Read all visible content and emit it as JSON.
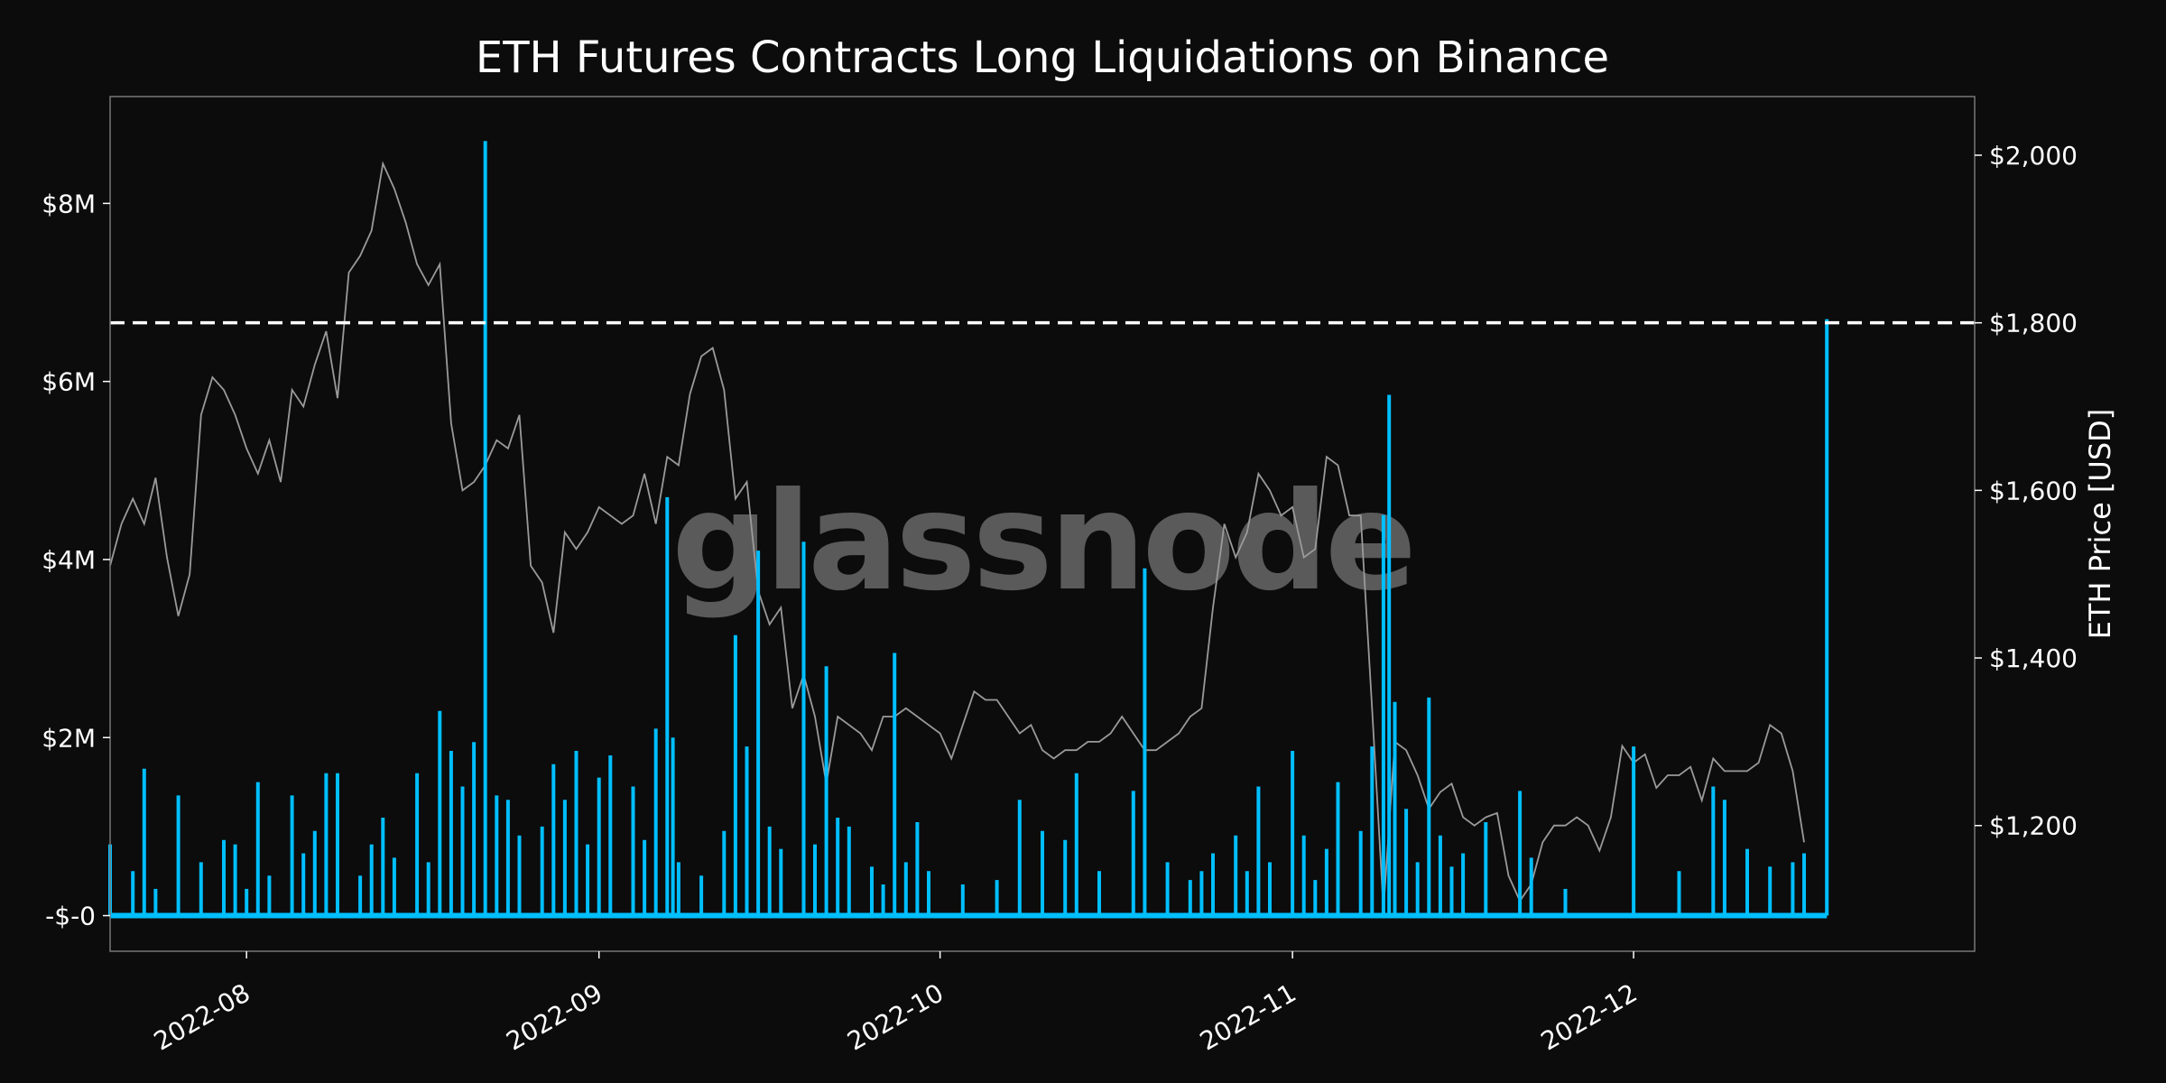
{
  "chart_data": {
    "type": "line",
    "title": "ETH Futures Contracts Long Liquidations on Binance",
    "watermark": "glassnode",
    "x_ticks": [
      "2022-08",
      "2022-09",
      "2022-10",
      "2022-11",
      "2022-12"
    ],
    "xlim": [
      "2022-07-20",
      "2022-12-31"
    ],
    "y_left": {
      "ylabel": "",
      "ylim": [
        -400000,
        9200000
      ],
      "ticks": [
        0,
        2000000,
        4000000,
        6000000,
        8000000
      ],
      "tick_labels": [
        "-$-0",
        "$2M",
        "$4M",
        "$6M",
        "$8M"
      ]
    },
    "y_right": {
      "ylabel": "ETH Price [USD]",
      "ylim": [
        1050,
        2070
      ],
      "ticks": [
        1200,
        1400,
        1600,
        1800,
        2000
      ],
      "tick_labels": [
        "$1,200",
        "$1,400",
        "$1,600",
        "$1,800",
        "$2,000"
      ]
    },
    "hline": {
      "axis": "right",
      "value": 1800,
      "style": "dashed",
      "color": "#ffffff"
    },
    "colors": {
      "liquidations": "#00bfff",
      "price": "#9a9a9a",
      "background": "#0c0c0c",
      "frame": "#777777"
    },
    "series": [
      {
        "name": "Long Liquidations",
        "axis": "left",
        "points": [
          [
            "2022-07-20",
            800000.0
          ],
          [
            "2022-07-22",
            500000.0
          ],
          [
            "2022-07-23",
            1650000.0
          ],
          [
            "2022-07-24",
            300000.0
          ],
          [
            "2022-07-26",
            1350000.0
          ],
          [
            "2022-07-28",
            600000.0
          ],
          [
            "2022-07-30",
            850000.0
          ],
          [
            "2022-07-31",
            800000.0
          ],
          [
            "2022-08-01",
            300000.0
          ],
          [
            "2022-08-02",
            1500000.0
          ],
          [
            "2022-08-03",
            450000.0
          ],
          [
            "2022-08-05",
            1350000.0
          ],
          [
            "2022-08-06",
            700000.0
          ],
          [
            "2022-08-07",
            950000.0
          ],
          [
            "2022-08-08",
            1600000.0
          ],
          [
            "2022-08-09",
            1600000.0
          ],
          [
            "2022-08-11",
            450000.0
          ],
          [
            "2022-08-12",
            800000.0
          ],
          [
            "2022-08-13",
            1100000.0
          ],
          [
            "2022-08-14",
            650000.0
          ],
          [
            "2022-08-16",
            1600000.0
          ],
          [
            "2022-08-17",
            600000.0
          ],
          [
            "2022-08-18",
            2300000.0
          ],
          [
            "2022-08-19",
            1850000.0
          ],
          [
            "2022-08-20",
            1450000.0
          ],
          [
            "2022-08-21",
            1950000.0
          ],
          [
            "2022-08-22",
            8700000.0
          ],
          [
            "2022-08-23",
            1350000.0
          ],
          [
            "2022-08-24",
            1300000.0
          ],
          [
            "2022-08-25",
            900000.0
          ],
          [
            "2022-08-27",
            1000000.0
          ],
          [
            "2022-08-28",
            1700000.0
          ],
          [
            "2022-08-29",
            1300000.0
          ],
          [
            "2022-08-30",
            1850000.0
          ],
          [
            "2022-08-31",
            800000.0
          ],
          [
            "2022-09-01",
            1550000.0
          ],
          [
            "2022-09-02",
            1800000.0
          ],
          [
            "2022-09-04",
            1450000.0
          ],
          [
            "2022-09-05",
            850000.0
          ],
          [
            "2022-09-06",
            2100000.0
          ],
          [
            "2022-09-07",
            4700000.0
          ],
          [
            "2022-09-07T12:00",
            2000000.0
          ],
          [
            "2022-09-08",
            600000.0
          ],
          [
            "2022-09-10",
            450000.0
          ],
          [
            "2022-09-12",
            950000.0
          ],
          [
            "2022-09-13",
            3150000.0
          ],
          [
            "2022-09-14",
            1900000.0
          ],
          [
            "2022-09-15",
            4100000.0
          ],
          [
            "2022-09-16",
            1000000.0
          ],
          [
            "2022-09-17",
            750000.0
          ],
          [
            "2022-09-19",
            4200000.0
          ],
          [
            "2022-09-20",
            800000.0
          ],
          [
            "2022-09-21",
            2800000.0
          ],
          [
            "2022-09-22",
            1100000.0
          ],
          [
            "2022-09-23",
            1000000.0
          ],
          [
            "2022-09-25",
            550000.0
          ],
          [
            "2022-09-26",
            350000.0
          ],
          [
            "2022-09-27",
            2950000.0
          ],
          [
            "2022-09-28",
            600000.0
          ],
          [
            "2022-09-29",
            1050000.0
          ],
          [
            "2022-09-30",
            500000.0
          ],
          [
            "2022-10-03",
            350000.0
          ],
          [
            "2022-10-06",
            400000.0
          ],
          [
            "2022-10-08",
            1300000.0
          ],
          [
            "2022-10-10",
            950000.0
          ],
          [
            "2022-10-12",
            850000.0
          ],
          [
            "2022-10-13",
            1600000.0
          ],
          [
            "2022-10-15",
            500000.0
          ],
          [
            "2022-10-18",
            1400000.0
          ],
          [
            "2022-10-19",
            3900000.0
          ],
          [
            "2022-10-21",
            600000.0
          ],
          [
            "2022-10-23",
            400000.0
          ],
          [
            "2022-10-24",
            500000.0
          ],
          [
            "2022-10-25",
            700000.0
          ],
          [
            "2022-10-27",
            900000.0
          ],
          [
            "2022-10-28",
            500000.0
          ],
          [
            "2022-10-29",
            1450000.0
          ],
          [
            "2022-10-30",
            600000.0
          ],
          [
            "2022-11-01",
            1850000.0
          ],
          [
            "2022-11-02",
            900000.0
          ],
          [
            "2022-11-03",
            400000.0
          ],
          [
            "2022-11-04",
            750000.0
          ],
          [
            "2022-11-05",
            1500000.0
          ],
          [
            "2022-11-07",
            950000.0
          ],
          [
            "2022-11-08",
            1900000.0
          ],
          [
            "2022-11-09",
            4500000.0
          ],
          [
            "2022-11-09T12:00",
            5850000.0
          ],
          [
            "2022-11-10",
            2400000.0
          ],
          [
            "2022-11-11",
            1200000.0
          ],
          [
            "2022-11-12",
            600000.0
          ],
          [
            "2022-11-13",
            2450000.0
          ],
          [
            "2022-11-14",
            900000.0
          ],
          [
            "2022-11-15",
            550000.0
          ],
          [
            "2022-11-16",
            700000.0
          ],
          [
            "2022-11-18",
            1050000.0
          ],
          [
            "2022-11-21",
            1400000.0
          ],
          [
            "2022-11-22",
            650000.0
          ],
          [
            "2022-11-25",
            300000.0
          ],
          [
            "2022-12-01",
            1900000.0
          ],
          [
            "2022-12-05",
            500000.0
          ],
          [
            "2022-12-08",
            1450000.0
          ],
          [
            "2022-12-09",
            1300000.0
          ],
          [
            "2022-12-11",
            750000.0
          ],
          [
            "2022-12-13",
            550000.0
          ],
          [
            "2022-12-15",
            600000.0
          ],
          [
            "2022-12-16",
            700000.0
          ],
          [
            "2022-12-18",
            6700000.0
          ]
        ]
      },
      {
        "name": "ETH Price",
        "axis": "right",
        "points": [
          [
            "2022-07-20",
            1510
          ],
          [
            "2022-07-21",
            1560
          ],
          [
            "2022-07-22",
            1590
          ],
          [
            "2022-07-23",
            1560
          ],
          [
            "2022-07-24",
            1615
          ],
          [
            "2022-07-25",
            1520
          ],
          [
            "2022-07-26",
            1450
          ],
          [
            "2022-07-27",
            1500
          ],
          [
            "2022-07-28",
            1690
          ],
          [
            "2022-07-29",
            1735
          ],
          [
            "2022-07-30",
            1720
          ],
          [
            "2022-07-31",
            1690
          ],
          [
            "2022-08-01",
            1650
          ],
          [
            "2022-08-02",
            1620
          ],
          [
            "2022-08-03",
            1660
          ],
          [
            "2022-08-04",
            1610
          ],
          [
            "2022-08-05",
            1720
          ],
          [
            "2022-08-06",
            1700
          ],
          [
            "2022-08-07",
            1750
          ],
          [
            "2022-08-08",
            1790
          ],
          [
            "2022-08-09",
            1710
          ],
          [
            "2022-08-10",
            1860
          ],
          [
            "2022-08-11",
            1880
          ],
          [
            "2022-08-12",
            1910
          ],
          [
            "2022-08-13",
            1990
          ],
          [
            "2022-08-14",
            1960
          ],
          [
            "2022-08-15",
            1920
          ],
          [
            "2022-08-16",
            1870
          ],
          [
            "2022-08-17",
            1845
          ],
          [
            "2022-08-18",
            1870
          ],
          [
            "2022-08-19",
            1680
          ],
          [
            "2022-08-20",
            1600
          ],
          [
            "2022-08-21",
            1610
          ],
          [
            "2022-08-22",
            1630
          ],
          [
            "2022-08-23",
            1660
          ],
          [
            "2022-08-24",
            1650
          ],
          [
            "2022-08-25",
            1690
          ],
          [
            "2022-08-26",
            1510
          ],
          [
            "2022-08-27",
            1490
          ],
          [
            "2022-08-28",
            1430
          ],
          [
            "2022-08-29",
            1550
          ],
          [
            "2022-08-30",
            1530
          ],
          [
            "2022-08-31",
            1550
          ],
          [
            "2022-09-01",
            1580
          ],
          [
            "2022-09-02",
            1570
          ],
          [
            "2022-09-03",
            1560
          ],
          [
            "2022-09-04",
            1570
          ],
          [
            "2022-09-05",
            1620
          ],
          [
            "2022-09-06",
            1560
          ],
          [
            "2022-09-07",
            1640
          ],
          [
            "2022-09-08",
            1630
          ],
          [
            "2022-09-09",
            1715
          ],
          [
            "2022-09-10",
            1760
          ],
          [
            "2022-09-11",
            1770
          ],
          [
            "2022-09-12",
            1720
          ],
          [
            "2022-09-13",
            1590
          ],
          [
            "2022-09-14",
            1610
          ],
          [
            "2022-09-15",
            1480
          ],
          [
            "2022-09-16",
            1440
          ],
          [
            "2022-09-17",
            1460
          ],
          [
            "2022-09-18",
            1340
          ],
          [
            "2022-09-19",
            1380
          ],
          [
            "2022-09-20",
            1330
          ],
          [
            "2022-09-21",
            1250
          ],
          [
            "2022-09-22",
            1330
          ],
          [
            "2022-09-23",
            1320
          ],
          [
            "2022-09-24",
            1310
          ],
          [
            "2022-09-25",
            1290
          ],
          [
            "2022-09-26",
            1330
          ],
          [
            "2022-09-27",
            1330
          ],
          [
            "2022-09-28",
            1340
          ],
          [
            "2022-09-29",
            1330
          ],
          [
            "2022-09-30",
            1320
          ],
          [
            "2022-10-01",
            1310
          ],
          [
            "2022-10-02",
            1280
          ],
          [
            "2022-10-03",
            1320
          ],
          [
            "2022-10-04",
            1360
          ],
          [
            "2022-10-05",
            1350
          ],
          [
            "2022-10-06",
            1350
          ],
          [
            "2022-10-07",
            1330
          ],
          [
            "2022-10-08",
            1310
          ],
          [
            "2022-10-09",
            1320
          ],
          [
            "2022-10-10",
            1290
          ],
          [
            "2022-10-11",
            1280
          ],
          [
            "2022-10-12",
            1290
          ],
          [
            "2022-10-13",
            1290
          ],
          [
            "2022-10-14",
            1300
          ],
          [
            "2022-10-15",
            1300
          ],
          [
            "2022-10-16",
            1310
          ],
          [
            "2022-10-17",
            1330
          ],
          [
            "2022-10-18",
            1310
          ],
          [
            "2022-10-19",
            1290
          ],
          [
            "2022-10-20",
            1290
          ],
          [
            "2022-10-21",
            1300
          ],
          [
            "2022-10-22",
            1310
          ],
          [
            "2022-10-23",
            1330
          ],
          [
            "2022-10-24",
            1340
          ],
          [
            "2022-10-25",
            1460
          ],
          [
            "2022-10-26",
            1560
          ],
          [
            "2022-10-27",
            1520
          ],
          [
            "2022-10-28",
            1550
          ],
          [
            "2022-10-29",
            1620
          ],
          [
            "2022-10-30",
            1600
          ],
          [
            "2022-10-31",
            1570
          ],
          [
            "2022-11-01",
            1580
          ],
          [
            "2022-11-02",
            1520
          ],
          [
            "2022-11-03",
            1530
          ],
          [
            "2022-11-04",
            1640
          ],
          [
            "2022-11-05",
            1630
          ],
          [
            "2022-11-06",
            1570
          ],
          [
            "2022-11-07",
            1570
          ],
          [
            "2022-11-08",
            1340
          ],
          [
            "2022-11-09",
            1100
          ],
          [
            "2022-11-10",
            1300
          ],
          [
            "2022-11-11",
            1290
          ],
          [
            "2022-11-12",
            1260
          ],
          [
            "2022-11-13",
            1220
          ],
          [
            "2022-11-14",
            1240
          ],
          [
            "2022-11-15",
            1250
          ],
          [
            "2022-11-16",
            1210
          ],
          [
            "2022-11-17",
            1200
          ],
          [
            "2022-11-18",
            1210
          ],
          [
            "2022-11-19",
            1215
          ],
          [
            "2022-11-20",
            1140
          ],
          [
            "2022-11-21",
            1110
          ],
          [
            "2022-11-22",
            1130
          ],
          [
            "2022-11-23",
            1180
          ],
          [
            "2022-11-24",
            1200
          ],
          [
            "2022-11-25",
            1200
          ],
          [
            "2022-11-26",
            1210
          ],
          [
            "2022-11-27",
            1200
          ],
          [
            "2022-11-28",
            1170
          ],
          [
            "2022-11-29",
            1210
          ],
          [
            "2022-11-30",
            1295
          ],
          [
            "2022-12-01",
            1275
          ],
          [
            "2022-12-02",
            1285
          ],
          [
            "2022-12-03",
            1245
          ],
          [
            "2022-12-04",
            1260
          ],
          [
            "2022-12-05",
            1260
          ],
          [
            "2022-12-06",
            1270
          ],
          [
            "2022-12-07",
            1230
          ],
          [
            "2022-12-08",
            1280
          ],
          [
            "2022-12-09",
            1265
          ],
          [
            "2022-12-10",
            1265
          ],
          [
            "2022-12-11",
            1265
          ],
          [
            "2022-12-12",
            1275
          ],
          [
            "2022-12-13",
            1320
          ],
          [
            "2022-12-14",
            1310
          ],
          [
            "2022-12-15",
            1265
          ],
          [
            "2022-12-16",
            1180
          ]
        ]
      }
    ]
  }
}
